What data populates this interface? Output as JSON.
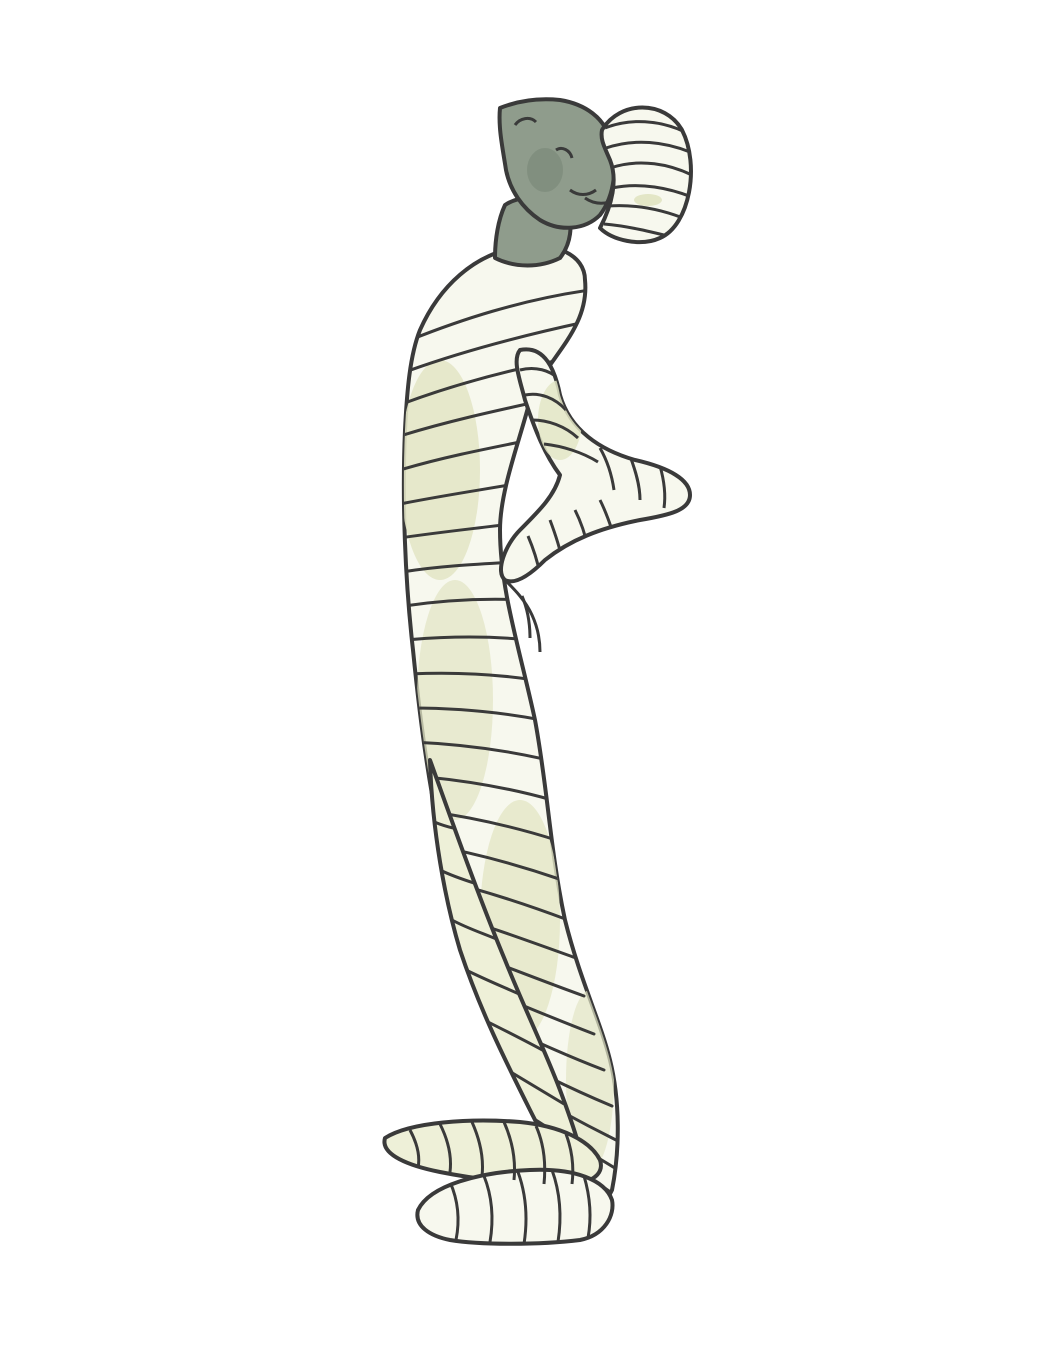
{
  "illustration": {
    "subject": "mummy",
    "palette": {
      "background": "#ffffff",
      "outline": "#3a3a3a",
      "bandage": "#f7f8ee",
      "bandage_shade": "#e3e6c6",
      "skin": "#8f9c8c",
      "skin_shade": "#778575"
    }
  }
}
